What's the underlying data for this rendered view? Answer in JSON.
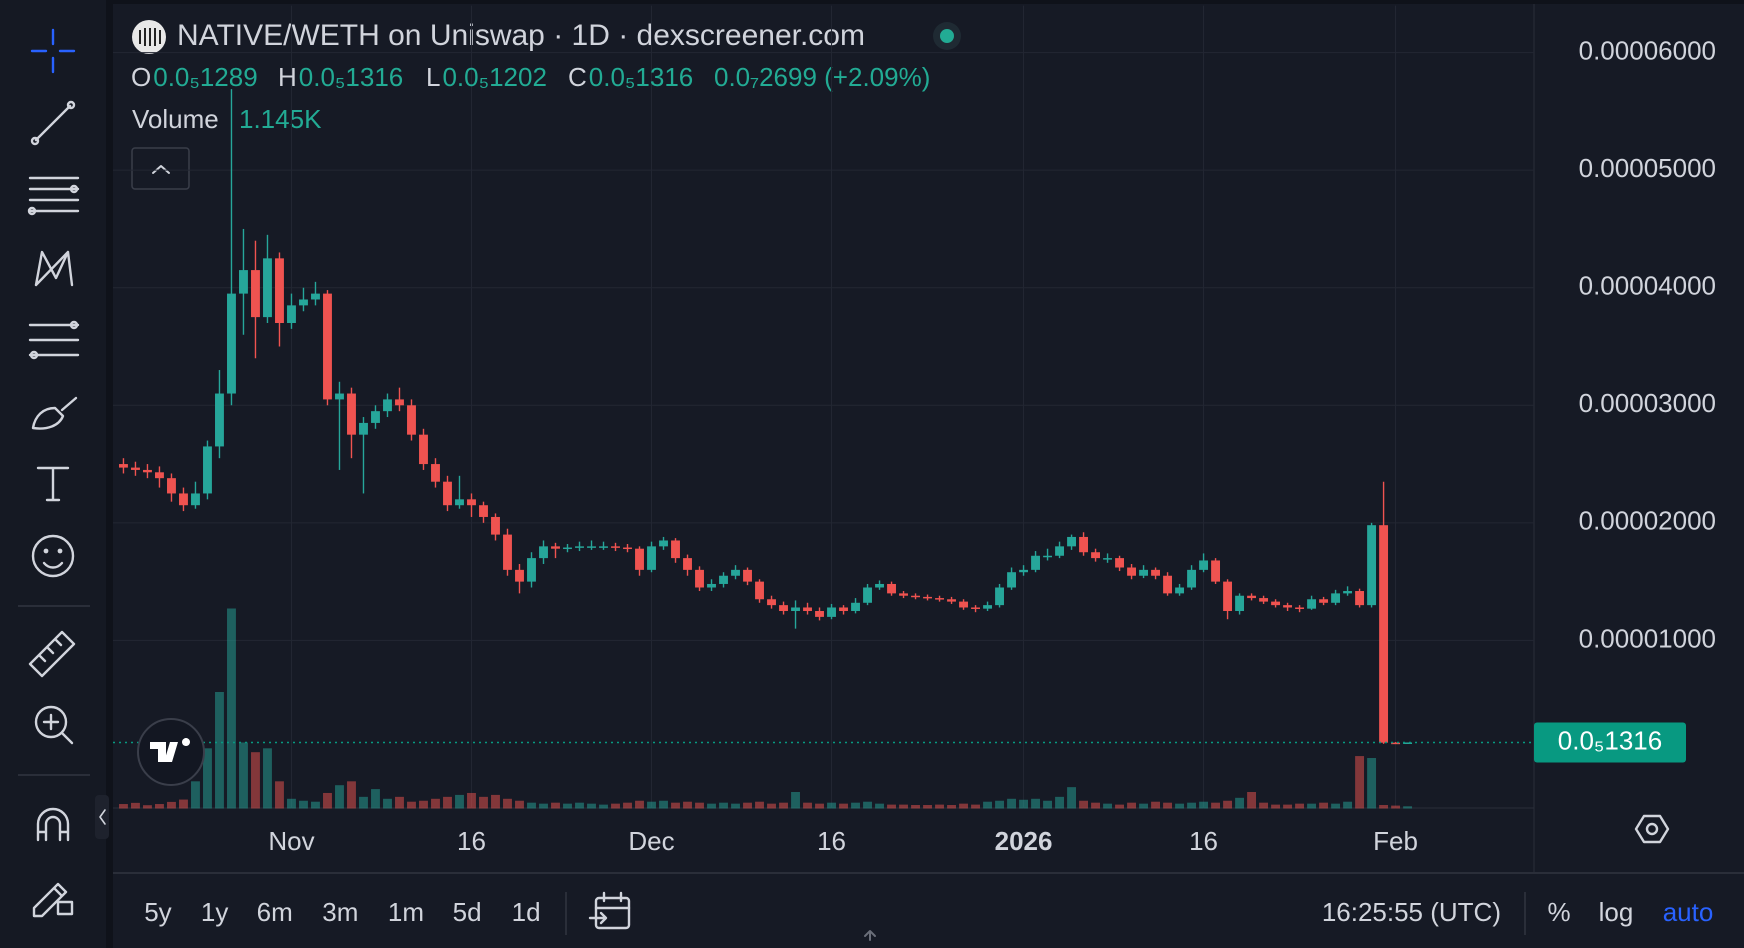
{
  "chart_data": {
    "type": "candlestick",
    "title": "NATIVE/WETH on Uniswap · 1D · dexscreener.com",
    "ohlc_legend": [
      {
        "key": "O",
        "label": "0.0₅1289"
      },
      {
        "key": "H",
        "label": "0.0₅1316"
      },
      {
        "key": "L",
        "label": "0.0₅1202"
      },
      {
        "key": "C",
        "label": "0.0₅1316"
      }
    ],
    "change_label": "0.0₇2699 (+2.09%)",
    "volume_title": "Volume",
    "volume_value_label": "1.145K",
    "up_color": "#26a69a",
    "down_color": "#ef5350",
    "grid": true,
    "ylim": [
      -4.3e-06,
      6.4e-05
    ],
    "yticks": [
      {
        "value": 1e-05,
        "label": "0.00001000"
      },
      {
        "value": 2e-05,
        "label": "0.00002000"
      },
      {
        "value": 3e-05,
        "label": "0.00003000"
      },
      {
        "value": 4e-05,
        "label": "0.00004000"
      },
      {
        "value": 5e-05,
        "label": "0.00005000"
      },
      {
        "value": 6e-05,
        "label": "0.00006000"
      }
    ],
    "last_price": {
      "value": 1.316e-06,
      "label": "0.0₅1316",
      "color": "#089981"
    },
    "categories": [
      null,
      null,
      null,
      null,
      null,
      null,
      null,
      null,
      null,
      null,
      null,
      null,
      null,
      null,
      "Nov",
      null,
      null,
      null,
      null,
      null,
      null,
      null,
      null,
      null,
      null,
      null,
      null,
      null,
      null,
      "16",
      null,
      null,
      null,
      null,
      null,
      null,
      null,
      null,
      null,
      null,
      null,
      null,
      null,
      null,
      "Dec",
      null,
      null,
      null,
      null,
      null,
      null,
      null,
      null,
      null,
      null,
      null,
      null,
      null,
      null,
      "16",
      null,
      null,
      null,
      null,
      null,
      null,
      null,
      null,
      null,
      null,
      null,
      null,
      null,
      null,
      null,
      "2026",
      null,
      null,
      null,
      null,
      null,
      null,
      null,
      null,
      null,
      null,
      null,
      null,
      null,
      null,
      "16",
      null,
      null,
      null,
      null,
      null,
      null,
      null,
      null,
      null,
      null,
      null,
      null,
      null,
      null,
      null,
      "Feb",
      null
    ],
    "open": [
      2.5e-05,
      2.47e-05,
      2.45e-05,
      2.43e-05,
      2.38e-05,
      2.25e-05,
      2.15e-05,
      2.25e-05,
      2.65e-05,
      3.1e-05,
      3.95e-05,
      4.15e-05,
      3.75e-05,
      4.25e-05,
      3.7e-05,
      3.85e-05,
      3.9e-05,
      3.95e-05,
      3.05e-05,
      3.1e-05,
      2.75e-05,
      2.85e-05,
      2.95e-05,
      3.05e-05,
      3e-05,
      2.75e-05,
      2.5e-05,
      2.35e-05,
      2.15e-05,
      2.2e-05,
      2.15e-05,
      2.05e-05,
      1.9e-05,
      1.6e-05,
      1.5e-05,
      1.7e-05,
      1.8e-05,
      1.78e-05,
      1.79e-05,
      1.8e-05,
      1.8e-05,
      1.8e-05,
      1.79e-05,
      1.78e-05,
      1.6e-05,
      1.8e-05,
      1.85e-05,
      1.7e-05,
      1.6e-05,
      1.45e-05,
      1.48e-05,
      1.55e-05,
      1.6e-05,
      1.5e-05,
      1.35e-05,
      1.3e-05,
      1.25e-05,
      1.28e-05,
      1.25e-05,
      1.2e-05,
      1.28e-05,
      1.25e-05,
      1.32e-05,
      1.45e-05,
      1.48e-05,
      1.4e-05,
      1.38e-05,
      1.37e-05,
      1.36e-05,
      1.35e-05,
      1.33e-05,
      1.28e-05,
      1.27e-05,
      1.3e-05,
      1.45e-05,
      1.58e-05,
      1.6e-05,
      1.72e-05,
      1.72e-05,
      1.8e-05,
      1.88e-05,
      1.75e-05,
      1.7e-05,
      1.7e-05,
      1.62e-05,
      1.55e-05,
      1.6e-05,
      1.55e-05,
      1.4e-05,
      1.45e-05,
      1.6e-05,
      1.68e-05,
      1.5e-05,
      1.25e-05,
      1.38e-05,
      1.36e-05,
      1.33e-05,
      1.3e-05,
      1.28e-05,
      1.27e-05,
      1.35e-05,
      1.32e-05,
      1.4e-05,
      1.42e-05,
      1.3e-05,
      1.98e-05,
      1.3e-06,
      1.289e-06
    ],
    "high": [
      2.55e-05,
      2.52e-05,
      2.5e-05,
      2.48e-05,
      2.42e-05,
      2.3e-05,
      2.35e-05,
      2.7e-05,
      3.3e-05,
      5.69e-05,
      4.5e-05,
      4.4e-05,
      4.45e-05,
      4.3e-05,
      3.95e-05,
      4e-05,
      4.05e-05,
      3.98e-05,
      3.2e-05,
      3.15e-05,
      2.9e-05,
      3e-05,
      3.1e-05,
      3.15e-05,
      3.05e-05,
      2.8e-05,
      2.55e-05,
      2.4e-05,
      2.4e-05,
      2.25e-05,
      2.18e-05,
      2.08e-05,
      1.95e-05,
      1.65e-05,
      1.75e-05,
      1.85e-05,
      1.83e-05,
      1.82e-05,
      1.84e-05,
      1.85e-05,
      1.84e-05,
      1.83e-05,
      1.82e-05,
      1.8e-05,
      1.84e-05,
      1.88e-05,
      1.87e-05,
      1.73e-05,
      1.63e-05,
      1.52e-05,
      1.58e-05,
      1.64e-05,
      1.62e-05,
      1.52e-05,
      1.38e-05,
      1.33e-05,
      1.34e-05,
      1.32e-05,
      1.28e-05,
      1.31e-05,
      1.3e-05,
      1.36e-05,
      1.48e-05,
      1.51e-05,
      1.5e-05,
      1.42e-05,
      1.4e-05,
      1.39e-05,
      1.38e-05,
      1.37e-05,
      1.35e-05,
      1.3e-05,
      1.33e-05,
      1.48e-05,
      1.62e-05,
      1.64e-05,
      1.76e-05,
      1.78e-05,
      1.84e-05,
      1.9e-05,
      1.92e-05,
      1.78e-05,
      1.74e-05,
      1.72e-05,
      1.65e-05,
      1.64e-05,
      1.62e-05,
      1.58e-05,
      1.48e-05,
      1.64e-05,
      1.74e-05,
      1.7e-05,
      1.52e-05,
      1.4e-05,
      1.4e-05,
      1.38e-05,
      1.35e-05,
      1.32e-05,
      1.3e-05,
      1.38e-05,
      1.37e-05,
      1.43e-05,
      1.46e-05,
      1.44e-05,
      2e-05,
      2.35e-05,
      1.35e-06,
      1.316e-06
    ],
    "low": [
      2.42e-05,
      2.4e-05,
      2.38e-05,
      2.3e-05,
      2.18e-05,
      2.1e-05,
      2.12e-05,
      2.2e-05,
      2.55e-05,
      3e-05,
      3.6e-05,
      3.4e-05,
      3.7e-05,
      3.5e-05,
      3.65e-05,
      3.8e-05,
      3.85e-05,
      3e-05,
      2.45e-05,
      2.55e-05,
      2.25e-05,
      2.8e-05,
      2.9e-05,
      2.95e-05,
      2.7e-05,
      2.45e-05,
      2.3e-05,
      2.1e-05,
      2.12e-05,
      2.05e-05,
      2e-05,
      1.85e-05,
      1.55e-05,
      1.4e-05,
      1.45e-05,
      1.65e-05,
      1.7e-05,
      1.75e-05,
      1.76e-05,
      1.77e-05,
      1.77e-05,
      1.76e-05,
      1.75e-05,
      1.55e-05,
      1.58e-05,
      1.77e-05,
      1.66e-05,
      1.55e-05,
      1.42e-05,
      1.42e-05,
      1.45e-05,
      1.52e-05,
      1.47e-05,
      1.32e-05,
      1.27e-05,
      1.22e-05,
      1.1e-05,
      1.22e-05,
      1.17e-05,
      1.18e-05,
      1.22e-05,
      1.23e-05,
      1.3e-05,
      1.43e-05,
      1.38e-05,
      1.36e-05,
      1.35e-05,
      1.34e-05,
      1.33e-05,
      1.31e-05,
      1.26e-05,
      1.24e-05,
      1.25e-05,
      1.28e-05,
      1.43e-05,
      1.55e-05,
      1.58e-05,
      1.68e-05,
      1.7e-05,
      1.77e-05,
      1.72e-05,
      1.67e-05,
      1.66e-05,
      1.59e-05,
      1.52e-05,
      1.53e-05,
      1.52e-05,
      1.38e-05,
      1.38e-05,
      1.43e-05,
      1.58e-05,
      1.48e-05,
      1.18e-05,
      1.22e-05,
      1.34e-05,
      1.31e-05,
      1.28e-05,
      1.25e-05,
      1.24e-05,
      1.26e-05,
      1.3e-05,
      1.3e-05,
      1.38e-05,
      1.28e-05,
      1.28e-05,
      1.2e-06,
      1.25e-06,
      1.202e-06
    ],
    "close": [
      2.47e-05,
      2.45e-05,
      2.43e-05,
      2.38e-05,
      2.25e-05,
      2.15e-05,
      2.25e-05,
      2.65e-05,
      3.1e-05,
      3.95e-05,
      4.15e-05,
      3.75e-05,
      4.25e-05,
      3.7e-05,
      3.85e-05,
      3.9e-05,
      3.95e-05,
      3.05e-05,
      3.1e-05,
      2.75e-05,
      2.85e-05,
      2.95e-05,
      3.05e-05,
      3e-05,
      2.75e-05,
      2.5e-05,
      2.35e-05,
      2.15e-05,
      2.2e-05,
      2.15e-05,
      2.05e-05,
      1.9e-05,
      1.6e-05,
      1.5e-05,
      1.7e-05,
      1.8e-05,
      1.78e-05,
      1.79e-05,
      1.8e-05,
      1.8e-05,
      1.8e-05,
      1.79e-05,
      1.78e-05,
      1.6e-05,
      1.8e-05,
      1.85e-05,
      1.7e-05,
      1.6e-05,
      1.45e-05,
      1.48e-05,
      1.55e-05,
      1.6e-05,
      1.5e-05,
      1.35e-05,
      1.3e-05,
      1.25e-05,
      1.28e-05,
      1.25e-05,
      1.2e-05,
      1.28e-05,
      1.25e-05,
      1.32e-05,
      1.45e-05,
      1.48e-05,
      1.4e-05,
      1.38e-05,
      1.37e-05,
      1.36e-05,
      1.35e-05,
      1.33e-05,
      1.28e-05,
      1.27e-05,
      1.3e-05,
      1.45e-05,
      1.58e-05,
      1.6e-05,
      1.72e-05,
      1.72e-05,
      1.8e-05,
      1.88e-05,
      1.75e-05,
      1.7e-05,
      1.7e-05,
      1.62e-05,
      1.55e-05,
      1.6e-05,
      1.55e-05,
      1.4e-05,
      1.45e-05,
      1.6e-05,
      1.68e-05,
      1.5e-05,
      1.25e-05,
      1.38e-05,
      1.36e-05,
      1.33e-05,
      1.3e-05,
      1.28e-05,
      1.27e-05,
      1.35e-05,
      1.32e-05,
      1.4e-05,
      1.42e-05,
      1.3e-05,
      1.98e-05,
      1.3e-06,
      1.289e-06,
      1.316e-06
    ],
    "volume": [
      2300,
      2900,
      1700,
      2300,
      3400,
      4600,
      14000,
      31000,
      60000,
      103000,
      34000,
      29000,
      31000,
      14000,
      5000,
      4000,
      3500,
      8000,
      12000,
      14000,
      6000,
      10000,
      5000,
      6000,
      3500,
      4000,
      5000,
      6000,
      7000,
      8000,
      6000,
      7000,
      5000,
      4000,
      3000,
      2500,
      3000,
      2500,
      3000,
      2500,
      2000,
      2500,
      3000,
      4000,
      3500,
      4000,
      3000,
      3500,
      3000,
      2500,
      3000,
      2500,
      3000,
      3500,
      2500,
      3000,
      8500,
      3000,
      2500,
      3000,
      2500,
      3000,
      3500,
      2500,
      2000,
      2000,
      1800,
      1800,
      2000,
      1800,
      2500,
      2000,
      3500,
      4000,
      5000,
      4500,
      5000,
      4000,
      6000,
      11000,
      4000,
      3000,
      2500,
      2000,
      3000,
      2500,
      3500,
      3000,
      2500,
      3000,
      3500,
      3000,
      4000,
      5500,
      8500,
      3000,
      2000,
      2000,
      2500,
      2500,
      3000,
      2500,
      3500,
      27000,
      26000,
      1800,
      1500,
      1145
    ]
  },
  "toolbar": {
    "ranges": [
      "5y",
      "1y",
      "6m",
      "3m",
      "1m",
      "5d",
      "1d"
    ],
    "time": "16:25:55 (UTC)",
    "scale_options": [
      "%",
      "log",
      "auto"
    ]
  }
}
